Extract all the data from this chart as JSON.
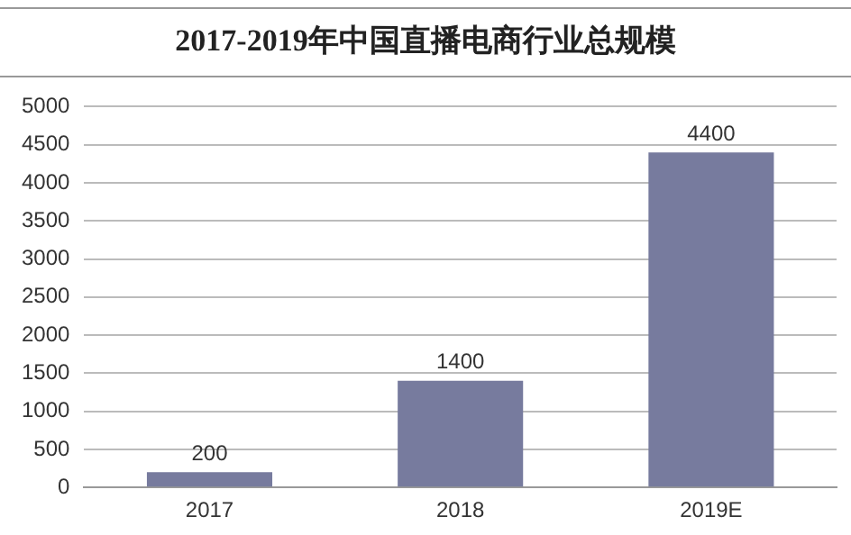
{
  "chart_data": {
    "type": "bar",
    "title": "2017-2019年中国直播电商行业总规模",
    "categories": [
      "2017",
      "2018",
      "2019E"
    ],
    "values": [
      200,
      1400,
      4400
    ],
    "color": "#777b9e",
    "ylim": [
      0,
      5000
    ],
    "yticks": [
      0,
      500,
      1000,
      1500,
      2000,
      2500,
      3000,
      3500,
      4000,
      4500,
      5000
    ],
    "grid": "y",
    "data_labels": true
  }
}
